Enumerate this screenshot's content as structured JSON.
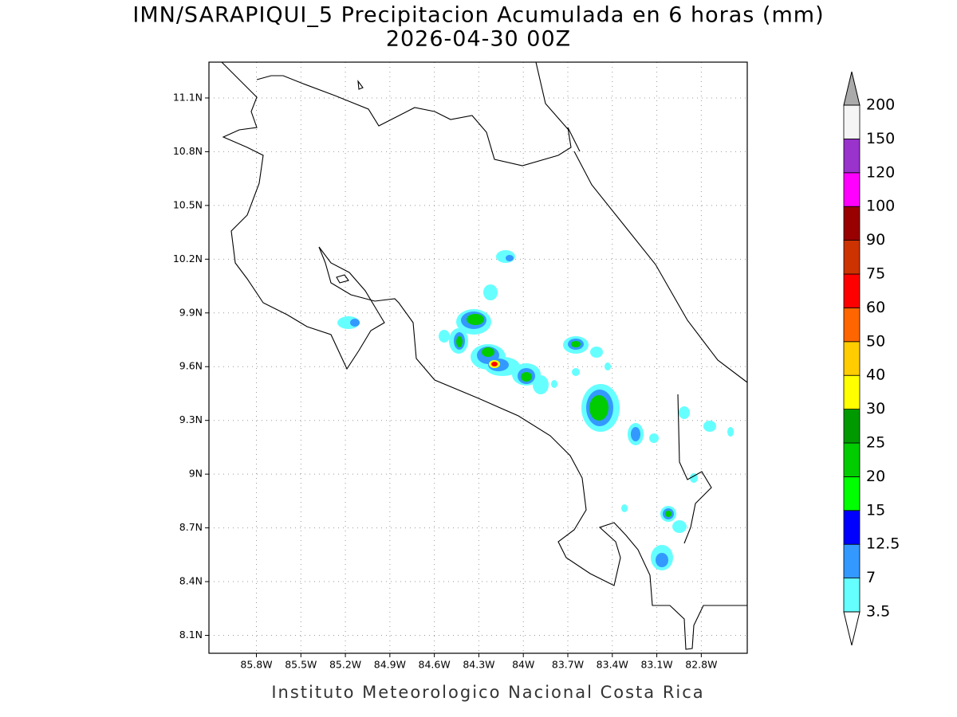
{
  "title": "IMN/SARAPIQUI_5 Precipitacion Acumulada en 6 horas (mm)",
  "subtitle": "2026-04-30 00Z",
  "footer": "Instituto Meteorologico Nacional Costa Rica",
  "map": {
    "xlim": [
      -86.12,
      -82.49
    ],
    "ylim": [
      8.0,
      11.3
    ],
    "xticks": [
      {
        "value": -85.8,
        "label": "85.8W"
      },
      {
        "value": -85.5,
        "label": "85.5W"
      },
      {
        "value": -85.2,
        "label": "85.2W"
      },
      {
        "value": -84.9,
        "label": "84.9W"
      },
      {
        "value": -84.6,
        "label": "84.6W"
      },
      {
        "value": -84.3,
        "label": "84.3W"
      },
      {
        "value": -84.0,
        "label": "84W"
      },
      {
        "value": -83.7,
        "label": "83.7W"
      },
      {
        "value": -83.4,
        "label": "83.4W"
      },
      {
        "value": -83.1,
        "label": "83.1W"
      },
      {
        "value": -82.8,
        "label": "82.8W"
      }
    ],
    "yticks": [
      {
        "value": 8.1,
        "label": "8.1N"
      },
      {
        "value": 8.4,
        "label": "8.4N"
      },
      {
        "value": 8.7,
        "label": "8.7N"
      },
      {
        "value": 9.0,
        "label": "9N"
      },
      {
        "value": 9.3,
        "label": "9.3N"
      },
      {
        "value": 9.6,
        "label": "9.6N"
      },
      {
        "value": 9.9,
        "label": "9.9N"
      },
      {
        "value": 10.2,
        "label": "10.2N"
      },
      {
        "value": 10.5,
        "label": "10.5N"
      },
      {
        "value": 10.8,
        "label": "10.8N"
      },
      {
        "value": 11.1,
        "label": "11.1N"
      }
    ],
    "grid": true
  },
  "colorbar": {
    "levels": [
      3.5,
      7,
      12.5,
      15,
      20,
      25,
      30,
      40,
      50,
      60,
      75,
      90,
      100,
      120,
      150,
      200
    ],
    "colors": [
      "#66ffff",
      "#3399ff",
      "#0000ff",
      "#00ff00",
      "#00cc00",
      "#009900",
      "#ffff00",
      "#ffcc00",
      "#ff6600",
      "#ff0000",
      "#cc3300",
      "#990000",
      "#ff00ff",
      "#9933cc",
      "#f5f5f5"
    ],
    "under_color": "#ffffff",
    "over_color": "#aaaaaa"
  }
}
